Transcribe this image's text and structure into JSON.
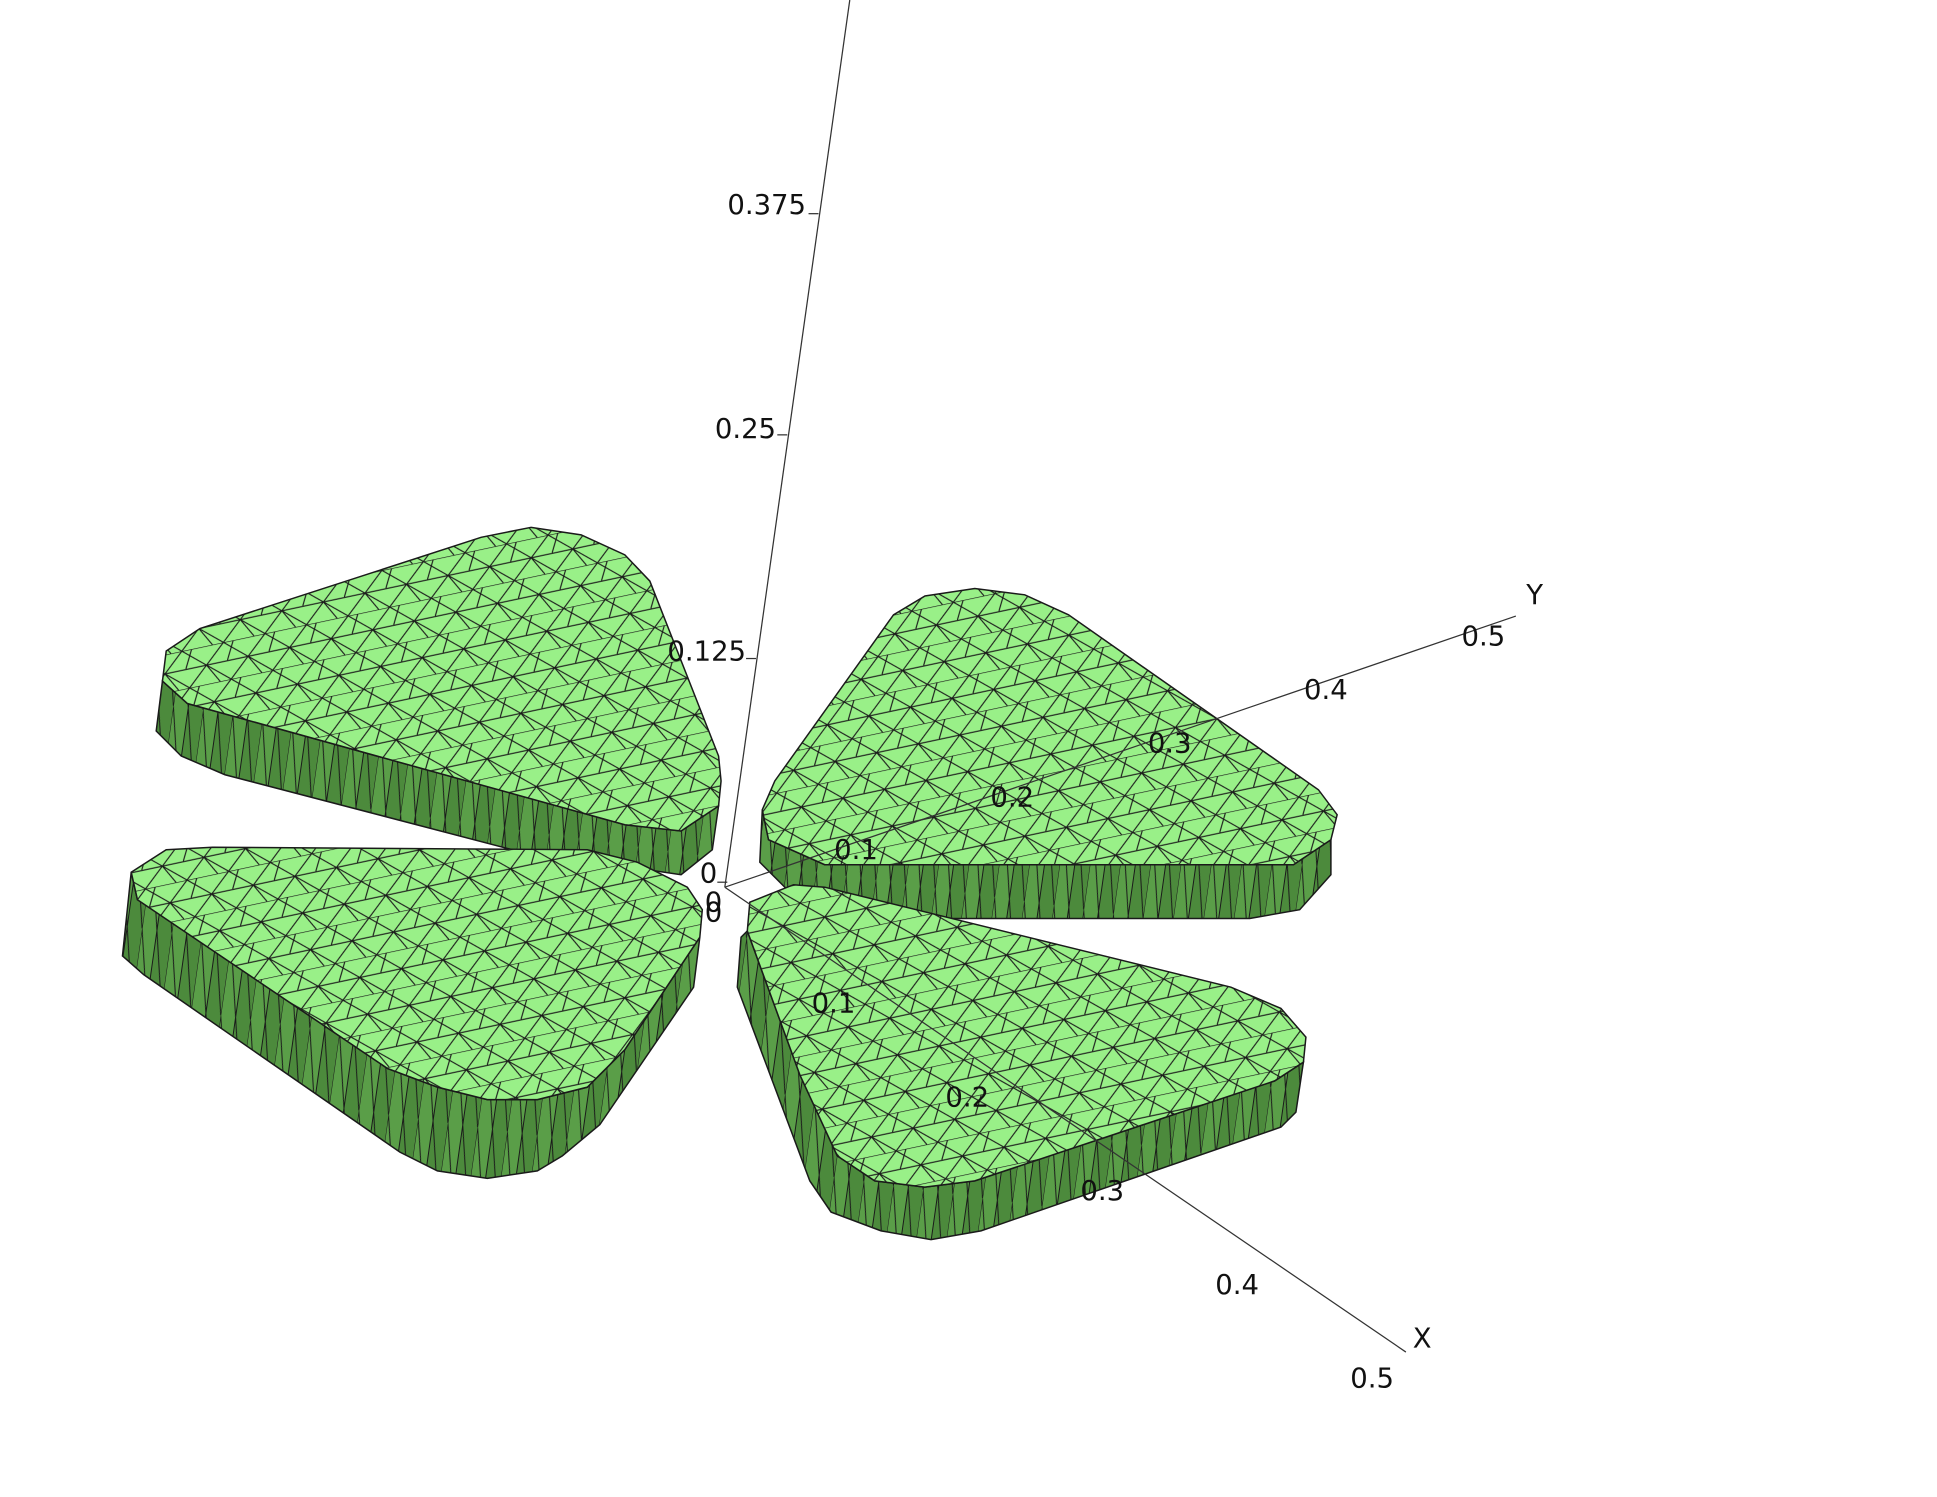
{
  "axes": {
    "z": {
      "ticks": [
        "0.375",
        "0.25",
        "0.125",
        "0"
      ]
    },
    "y": {
      "label": "Y",
      "ticks": [
        "0",
        "0.1",
        "0.2",
        "0.3",
        "0.4",
        "0.5"
      ]
    },
    "x": {
      "label": "X",
      "ticks": [
        "0",
        "0.1",
        "0.2",
        "0.3",
        "0.4",
        "0.5"
      ]
    }
  }
}
